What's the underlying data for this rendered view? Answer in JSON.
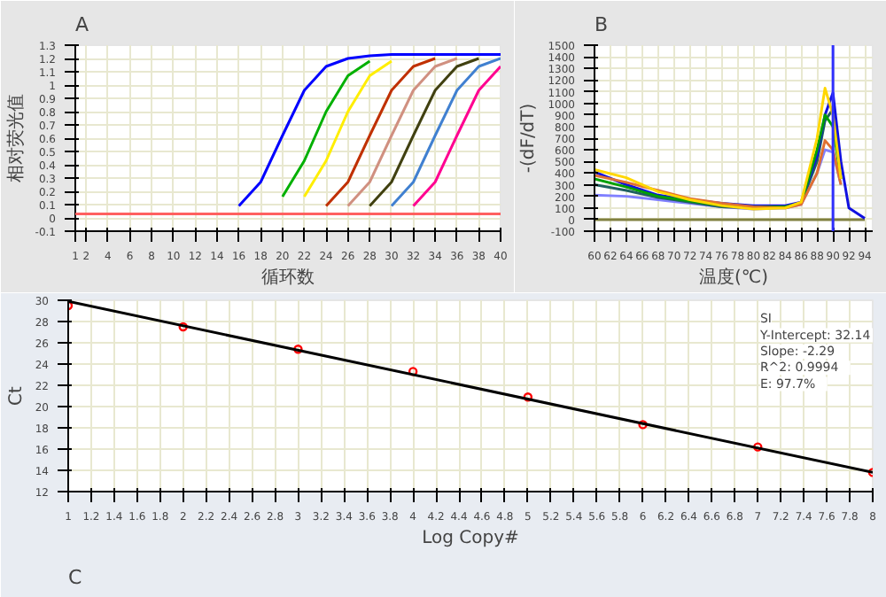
{
  "chart_data": [
    {
      "type": "line",
      "title": "A",
      "xlabel": "循环数",
      "ylabel": "相对荧光值",
      "xlim": [
        1,
        40
      ],
      "ylim": [
        -0.1,
        1.3
      ],
      "xticks": [
        1,
        2,
        4,
        6,
        8,
        10,
        12,
        14,
        16,
        18,
        20,
        22,
        24,
        26,
        28,
        30,
        32,
        34,
        36,
        38,
        40
      ],
      "yticks": [
        -0.1,
        0,
        0.1,
        0.2,
        0.3,
        0.4,
        0.5,
        0.6,
        0.7,
        0.8,
        0.9,
        1,
        1.1,
        1.2,
        1.3
      ],
      "grid": true,
      "series": [
        {
          "color": "#0000ff",
          "x": [
            16,
            18,
            20,
            22,
            24,
            26,
            28,
            30,
            32,
            34,
            36,
            38,
            40
          ],
          "values": [
            0.09,
            0.27,
            0.62,
            0.96,
            1.14,
            1.2,
            1.22,
            1.23,
            1.23,
            1.23,
            1.23,
            1.23,
            1.23
          ]
        },
        {
          "color": "#00b000",
          "x": [
            20,
            22,
            24,
            26,
            28
          ],
          "values": [
            0.16,
            0.43,
            0.8,
            1.07,
            1.18
          ]
        },
        {
          "color": "#ffee00",
          "x": [
            22,
            24,
            26,
            28,
            30
          ],
          "values": [
            0.16,
            0.43,
            0.8,
            1.07,
            1.18
          ]
        },
        {
          "color": "#c03000",
          "x": [
            24,
            26,
            28,
            30,
            32,
            34
          ],
          "values": [
            0.09,
            0.27,
            0.62,
            0.96,
            1.14,
            1.2
          ]
        },
        {
          "color": "#d09080",
          "x": [
            26,
            28,
            30,
            32,
            34,
            36
          ],
          "values": [
            0.09,
            0.27,
            0.62,
            0.96,
            1.14,
            1.2
          ]
        },
        {
          "color": "#404010",
          "x": [
            28,
            30,
            32,
            34,
            36,
            38
          ],
          "values": [
            0.09,
            0.27,
            0.62,
            0.96,
            1.14,
            1.2
          ]
        },
        {
          "color": "#4080d0",
          "x": [
            30,
            32,
            34,
            36,
            38,
            40
          ],
          "values": [
            0.09,
            0.27,
            0.62,
            0.96,
            1.14,
            1.2
          ]
        },
        {
          "color": "#ff0090",
          "x": [
            32,
            34,
            36,
            38,
            40
          ],
          "values": [
            0.09,
            0.27,
            0.62,
            0.96,
            1.14
          ]
        }
      ],
      "ref_lines": [
        {
          "axis": "y",
          "value": 0.03,
          "color": "#ff6060"
        }
      ]
    },
    {
      "type": "line",
      "title": "B",
      "xlabel": "温度(℃)",
      "ylabel": "-(dF/dT)",
      "x": [
        60,
        64,
        68,
        72,
        76,
        80,
        84,
        86,
        88,
        89,
        90,
        91,
        92,
        94
      ],
      "xlim": [
        60,
        95
      ],
      "ylim": [
        -100,
        1500
      ],
      "xticks": [
        60,
        62,
        64,
        66,
        68,
        70,
        72,
        74,
        76,
        78,
        80,
        82,
        84,
        86,
        88,
        90,
        92,
        94
      ],
      "yticks": [
        -100,
        0,
        100,
        200,
        300,
        400,
        500,
        600,
        700,
        800,
        900,
        1000,
        1100,
        1200,
        1300,
        1400,
        1500
      ],
      "grid": true,
      "series": [
        {
          "color": "#ffd700",
          "x": [
            60,
            64,
            68,
            72,
            76,
            80,
            84,
            86,
            88,
            89,
            90,
            91
          ],
          "values": [
            430,
            360,
            240,
            170,
            120,
            90,
            100,
            150,
            700,
            1130,
            900,
            350
          ]
        },
        {
          "color": "#e07030",
          "x": [
            60,
            64,
            68,
            72,
            76,
            80,
            84,
            86,
            88,
            89,
            90,
            91
          ],
          "values": [
            380,
            320,
            250,
            180,
            140,
            110,
            100,
            130,
            400,
            680,
            600,
            300
          ]
        },
        {
          "color": "#00a000",
          "x": [
            60,
            64,
            68,
            72,
            76,
            80,
            84,
            86,
            88,
            89,
            90,
            91
          ],
          "values": [
            350,
            280,
            200,
            160,
            120,
            110,
            110,
            140,
            600,
            900,
            800,
            350
          ]
        },
        {
          "color": "#1010e0",
          "values": [
            410,
            300,
            210,
            170,
            140,
            120,
            120,
            150,
            550,
            900,
            1090,
            500,
            100,
            10
          ]
        },
        {
          "color": "#206060",
          "x": [
            60,
            64,
            68,
            72,
            76,
            80,
            84,
            86,
            88,
            89,
            90,
            91
          ],
          "values": [
            300,
            250,
            190,
            150,
            110,
            100,
            110,
            140,
            500,
            850,
            950,
            450
          ]
        },
        {
          "color": "#8080ff",
          "x": [
            60,
            64,
            68,
            72,
            76,
            80,
            84,
            86,
            88,
            89,
            90,
            91
          ],
          "values": [
            210,
            200,
            170,
            140,
            110,
            90,
            100,
            130,
            400,
            600,
            580,
            300
          ]
        },
        {
          "color": "#808040",
          "values": [
            0,
            0,
            0,
            0,
            0,
            0,
            0,
            0,
            0,
            0,
            0,
            0,
            0,
            0
          ]
        }
      ],
      "ref_lines": [
        {
          "axis": "x",
          "value": 90,
          "color": "#3030ff"
        }
      ]
    },
    {
      "type": "scatter",
      "title": "C",
      "xlabel": "Log Copy#",
      "ylabel": "Ct",
      "xlim": [
        1,
        8
      ],
      "ylim": [
        12,
        30
      ],
      "xticks": [
        1,
        1.2,
        1.4,
        1.6,
        1.8,
        2,
        2.2,
        2.4,
        2.6,
        2.8,
        3,
        3.2,
        3.4,
        3.6,
        3.8,
        4,
        4.2,
        4.4,
        4.6,
        4.8,
        5,
        5.2,
        5.4,
        5.6,
        5.8,
        6,
        6.2,
        6.4,
        6.6,
        6.8,
        7,
        7.2,
        7.4,
        7.6,
        7.8,
        8
      ],
      "yticks": [
        12,
        14,
        16,
        18,
        20,
        22,
        24,
        26,
        28,
        30
      ],
      "grid": true,
      "series": [
        {
          "type": "line",
          "color": "#000000",
          "x": [
            1,
            8
          ],
          "values": [
            29.9,
            13.8
          ]
        },
        {
          "type": "scatter",
          "color": "#ff0000",
          "marker": "circle",
          "x": [
            1,
            2,
            3,
            4,
            5,
            6,
            7,
            8
          ],
          "values": [
            29.5,
            27.5,
            25.4,
            23.3,
            20.9,
            18.3,
            16.2,
            13.8
          ]
        }
      ],
      "annotations": [
        "SI",
        "Y-Intercept:    32.14",
        "Slope:    -2.29",
        "R^2:    0.9994",
        "E:    97.7%"
      ]
    }
  ]
}
